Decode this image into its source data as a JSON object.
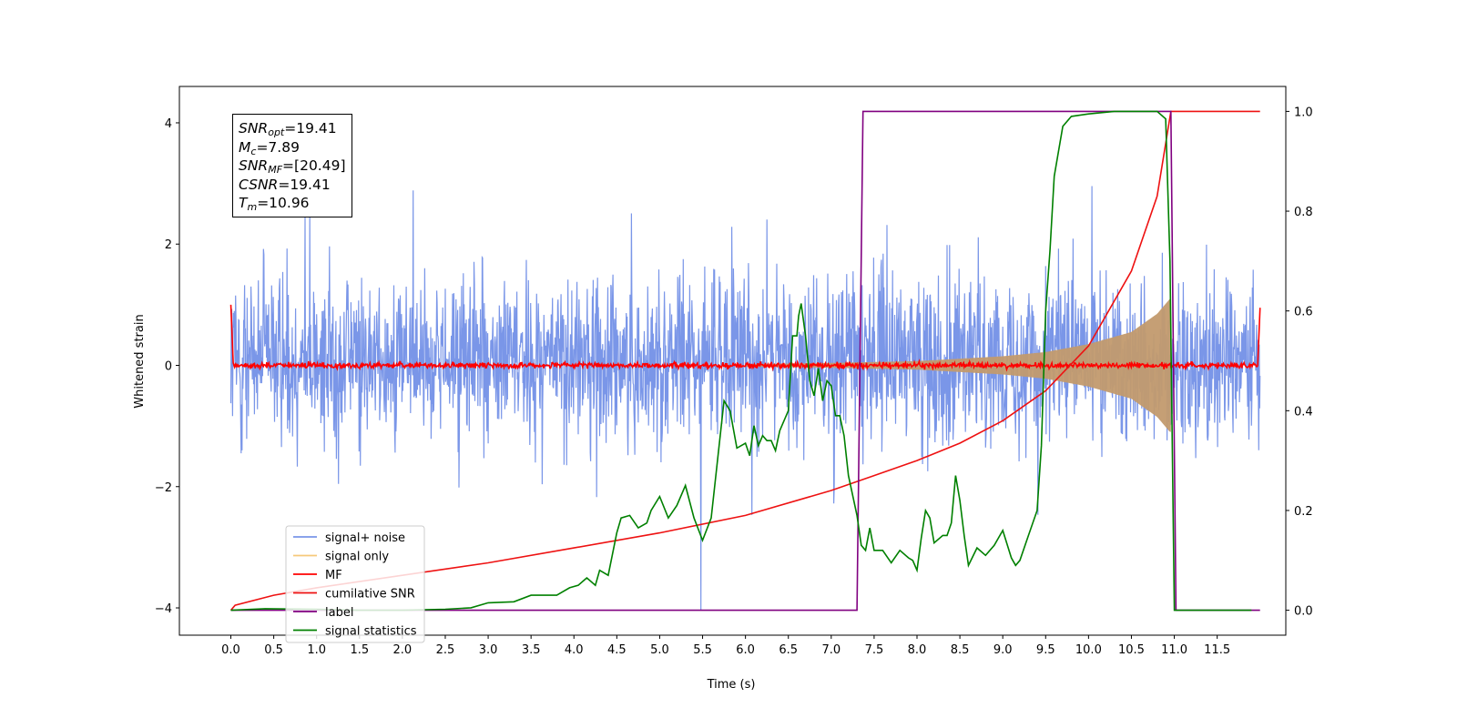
{
  "colors": {
    "signal_noise": "#7a96e8",
    "signal_only": "#f6c97a",
    "signal_fill": "#c29a6e",
    "mf": "#ff0000",
    "cumulative_snr": "#ee1111",
    "label": "#800080",
    "signal_statistics": "#008000"
  },
  "stats": {
    "snr_opt_symbol": "SNR",
    "snr_opt_sub": "opt",
    "snr_opt_value": "=19.41",
    "mc_symbol": "M",
    "mc_sub": "c",
    "mc_value": "=7.89",
    "snr_mf_symbol": "SNR",
    "snr_mf_sub": "MF",
    "snr_mf_value": "=[20.49]",
    "csnr_symbol": "CSNR",
    "csnr_value": "=19.41",
    "tm_symbol": "T",
    "tm_sub": "m",
    "tm_value": "=10.96"
  },
  "chart_data": {
    "type": "line",
    "xlabel": "Time (s)",
    "ylabel": "Whitened strain",
    "xlim": [
      -0.6,
      12.3
    ],
    "ylim": [
      -4.45,
      4.6
    ],
    "y2lim": [
      -0.05,
      1.05
    ],
    "x_ticks": [
      "0.0",
      "0.5",
      "1.0",
      "1.5",
      "2.0",
      "2.5",
      "3.0",
      "3.5",
      "4.0",
      "4.5",
      "5.0",
      "5.5",
      "6.0",
      "6.5",
      "7.0",
      "7.5",
      "8.0",
      "8.5",
      "9.0",
      "9.5",
      "10.0",
      "10.5",
      "11.0",
      "11.5"
    ],
    "y_ticks": [
      -4,
      -2,
      0,
      2,
      4
    ],
    "y_tick_labels": [
      "−4",
      "−2",
      "0",
      "2",
      "4"
    ],
    "y2_ticks": [
      0.0,
      0.2,
      0.4,
      0.6,
      0.8,
      1.0
    ],
    "y2_tick_labels": [
      "0.0",
      "0.2",
      "0.4",
      "0.6",
      "0.8",
      "1.0"
    ],
    "legend_position": "lower-left",
    "legend": [
      "signal+ noise",
      "signal only",
      "MF",
      "cumilative SNR",
      "label",
      "signal statistics"
    ],
    "series": [
      {
        "name": "signal+ noise",
        "axis": "left",
        "note_kind": "noise",
        "x_range": [
          0.0,
          12.0
        ],
        "envelope_typical": [
          -1.6,
          1.6
        ],
        "extremes": [
          -4.08,
          4.15
        ]
      },
      {
        "name": "signal only",
        "axis": "left",
        "x_range": [
          6.0,
          10.96
        ],
        "envelope_x": [
          6.0,
          7.0,
          8.0,
          9.0,
          9.5,
          10.0,
          10.5,
          10.8,
          10.95
        ],
        "envelope_amp": [
          0.02,
          0.04,
          0.07,
          0.15,
          0.22,
          0.35,
          0.55,
          0.85,
          1.1
        ]
      },
      {
        "name": "MF",
        "axis": "left",
        "x_range": [
          0.0,
          12.0
        ],
        "baseline": 0.0,
        "jitter": 0.06,
        "edge_values": [
          1.0,
          0.95
        ]
      },
      {
        "name": "cumilative SNR",
        "axis": "right",
        "x": [
          0.0,
          0.05,
          0.5,
          1.0,
          2.0,
          3.0,
          4.0,
          5.0,
          6.0,
          7.0,
          7.5,
          8.0,
          8.5,
          9.0,
          9.5,
          10.0,
          10.5,
          10.8,
          10.96,
          11.0,
          12.0
        ],
        "y": [
          0.0,
          0.01,
          0.03,
          0.045,
          0.07,
          0.095,
          0.125,
          0.155,
          0.19,
          0.24,
          0.27,
          0.3,
          0.335,
          0.38,
          0.44,
          0.53,
          0.68,
          0.83,
          1.0,
          1.0,
          1.0
        ]
      },
      {
        "name": "label",
        "axis": "right",
        "x": [
          0.0,
          7.3,
          7.37,
          10.96,
          11.02,
          12.0
        ],
        "y": [
          0.0,
          0.0,
          1.0,
          1.0,
          0.0,
          0.0
        ]
      },
      {
        "name": "signal statistics",
        "axis": "right",
        "x": [
          0.0,
          0.4,
          1.0,
          1.5,
          2.0,
          2.5,
          2.8,
          3.0,
          3.3,
          3.5,
          3.7,
          3.8,
          3.95,
          4.05,
          4.15,
          4.25,
          4.3,
          4.4,
          4.5,
          4.55,
          4.65,
          4.75,
          4.85,
          4.9,
          5.0,
          5.1,
          5.2,
          5.3,
          5.4,
          5.5,
          5.6,
          5.75,
          5.82,
          5.9,
          6.0,
          6.05,
          6.1,
          6.15,
          6.2,
          6.25,
          6.3,
          6.35,
          6.4,
          6.5,
          6.55,
          6.6,
          6.62,
          6.65,
          6.7,
          6.75,
          6.8,
          6.85,
          6.9,
          6.95,
          7.0,
          7.05,
          7.1,
          7.15,
          7.2,
          7.3,
          7.35,
          7.4,
          7.45,
          7.5,
          7.6,
          7.7,
          7.8,
          7.9,
          7.95,
          8.0,
          8.05,
          8.1,
          8.15,
          8.2,
          8.3,
          8.35,
          8.4,
          8.45,
          8.5,
          8.55,
          8.6,
          8.7,
          8.8,
          8.9,
          9.0,
          9.1,
          9.15,
          9.2,
          9.3,
          9.4,
          9.45,
          9.5,
          9.55,
          9.6,
          9.7,
          9.8,
          10.0,
          10.3,
          10.5,
          10.7,
          10.8,
          10.9,
          10.95,
          11.0,
          11.5,
          11.9
        ],
        "y": [
          0.0,
          0.003,
          0.002,
          0.0,
          0.0,
          0.002,
          0.005,
          0.015,
          0.017,
          0.03,
          0.03,
          0.03,
          0.045,
          0.05,
          0.065,
          0.05,
          0.08,
          0.07,
          0.155,
          0.185,
          0.19,
          0.165,
          0.175,
          0.2,
          0.228,
          0.185,
          0.21,
          0.25,
          0.185,
          0.14,
          0.185,
          0.42,
          0.4,
          0.325,
          0.335,
          0.31,
          0.37,
          0.33,
          0.35,
          0.34,
          0.34,
          0.32,
          0.36,
          0.4,
          0.55,
          0.55,
          0.59,
          0.615,
          0.55,
          0.46,
          0.43,
          0.485,
          0.42,
          0.46,
          0.45,
          0.39,
          0.39,
          0.35,
          0.27,
          0.19,
          0.13,
          0.12,
          0.165,
          0.12,
          0.12,
          0.095,
          0.12,
          0.105,
          0.1,
          0.08,
          0.145,
          0.2,
          0.185,
          0.135,
          0.15,
          0.15,
          0.175,
          0.27,
          0.22,
          0.15,
          0.09,
          0.125,
          0.11,
          0.13,
          0.16,
          0.105,
          0.09,
          0.1,
          0.15,
          0.2,
          0.33,
          0.6,
          0.72,
          0.87,
          0.97,
          0.99,
          0.995,
          1.0,
          1.0,
          1.0,
          1.0,
          0.985,
          0.7,
          0.0,
          0.0,
          0.0
        ]
      }
    ]
  }
}
